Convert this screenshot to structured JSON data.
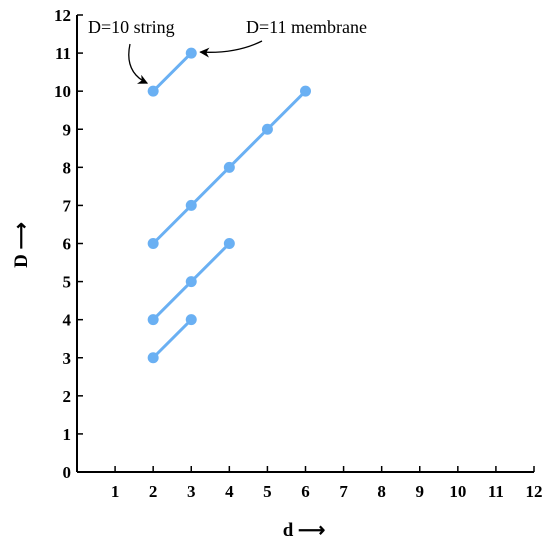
{
  "chart_data": {
    "type": "line",
    "xlabel": "d ⟶",
    "ylabel": "D ⟶",
    "xlim": [
      0,
      12
    ],
    "ylim": [
      0,
      12
    ],
    "xticks": [
      1,
      2,
      3,
      4,
      5,
      6,
      7,
      8,
      9,
      10,
      11,
      12
    ],
    "yticks": [
      0,
      1,
      2,
      3,
      4,
      5,
      6,
      7,
      8,
      9,
      10,
      11,
      12
    ],
    "grid": false,
    "color": "#6ab0f3",
    "series": [
      {
        "points": [
          [
            2,
            10
          ],
          [
            3,
            11
          ]
        ]
      },
      {
        "points": [
          [
            2,
            6
          ],
          [
            3,
            7
          ],
          [
            4,
            8
          ],
          [
            5,
            9
          ],
          [
            6,
            10
          ]
        ]
      },
      {
        "points": [
          [
            2,
            4
          ],
          [
            3,
            5
          ],
          [
            4,
            6
          ]
        ]
      },
      {
        "points": [
          [
            2,
            3
          ],
          [
            3,
            4
          ]
        ]
      }
    ],
    "annotations": [
      {
        "text": "D=10 string",
        "target": [
          2,
          10
        ]
      },
      {
        "text": "D=11 membrane",
        "target": [
          3,
          11
        ]
      }
    ]
  }
}
